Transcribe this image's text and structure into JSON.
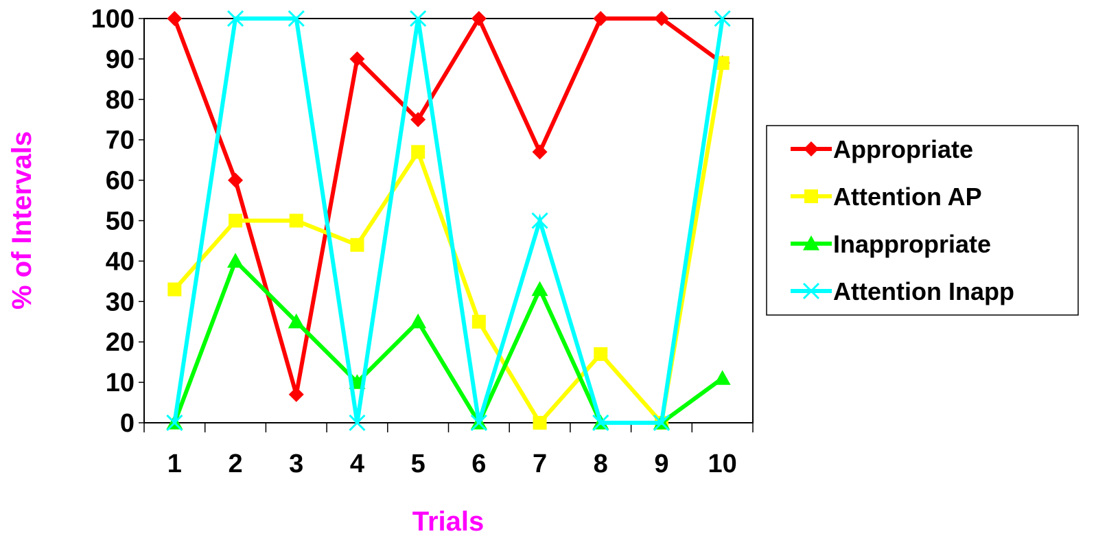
{
  "chart_data": {
    "type": "line",
    "title": "",
    "xlabel": "Trials",
    "ylabel": "% of Intervals",
    "axis_title_color": "#FF00FF",
    "x": [
      "1",
      "2",
      "3",
      "4",
      "5",
      "6",
      "7",
      "8",
      "9",
      "10"
    ],
    "yticks": [
      "0",
      "10",
      "20",
      "30",
      "40",
      "50",
      "60",
      "70",
      "80",
      "90",
      "100"
    ],
    "ylim": [
      0,
      100
    ],
    "grid": false,
    "legend_position": "right",
    "series": [
      {
        "name": "Appropriate",
        "color": "#FF0000",
        "marker": "diamond",
        "values": [
          100,
          60,
          7,
          90,
          75,
          100,
          67,
          100,
          100,
          89
        ]
      },
      {
        "name": "Attention AP",
        "color": "#FFFF00",
        "marker": "square",
        "values": [
          33,
          50,
          50,
          44,
          67,
          25,
          0,
          17,
          0,
          89
        ]
      },
      {
        "name": "Inappropriate",
        "color": "#00FF00",
        "marker": "triangle",
        "values": [
          0,
          40,
          25,
          10,
          25,
          0,
          33,
          0,
          0,
          11
        ]
      },
      {
        "name": "Attention Inapp",
        "color": "#00FFFF",
        "marker": "x",
        "values": [
          0,
          100,
          100,
          0,
          100,
          0,
          50,
          0,
          0,
          100
        ]
      }
    ]
  }
}
